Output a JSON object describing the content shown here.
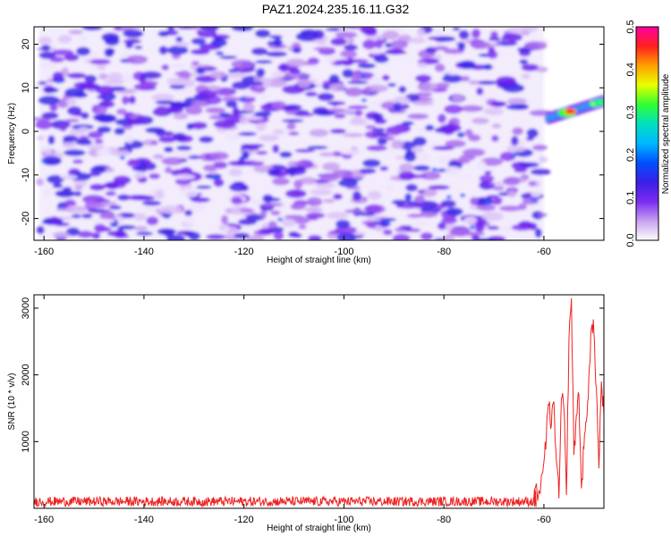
{
  "title": "PAZ1.2024.235.16.11.G32",
  "chart_data": [
    {
      "type": "heatmap",
      "xlabel": "Height of straight line (km)",
      "ylabel": "Frequency (Hz)",
      "xlim": [
        -162,
        -48
      ],
      "ylim": [
        -25,
        24
      ],
      "xticks": [
        "-160",
        "-140",
        "-120",
        "-100",
        "-80",
        "-60"
      ],
      "yticks": [
        "-20",
        "-10",
        "0",
        "10",
        "20"
      ],
      "colorbar": {
        "label": "Normalized spectral amplitude",
        "range": [
          0.0,
          0.5
        ],
        "ticks": [
          "0.0",
          "0.1",
          "0.2",
          "0.3",
          "0.4",
          "0.5"
        ],
        "colors": [
          "#ffffff",
          "#c8a0f0",
          "#7a2cf0",
          "#3a20e8",
          "#0050ff",
          "#00b8ff",
          "#00e0c0",
          "#30ff30",
          "#e8ff00",
          "#ffa000",
          "#ff2020",
          "#ff00a0"
        ]
      },
      "noise_region": {
        "x": [
          -161,
          -60
        ],
        "y": [
          -25,
          24
        ],
        "level": "0.02-0.1"
      },
      "signal_region": {
        "x": [
          -59,
          -48
        ],
        "center_freq_start": 3,
        "center_freq_end": 7,
        "peak": 0.45
      }
    },
    {
      "type": "line",
      "xlabel": "Height of straight line (km)",
      "ylabel": "SNR (10 * v/v)",
      "xlim": [
        -162,
        -48
      ],
      "ylim": [
        0,
        3200
      ],
      "xticks": [
        "-160",
        "-140",
        "-120",
        "-100",
        "-80",
        "-60"
      ],
      "yticks": [
        "1000",
        "2000",
        "3000"
      ],
      "series": [
        {
          "color": "#ee2222",
          "noise_level": 120,
          "x": [
            -62,
            -61,
            -60,
            -59.5,
            -59,
            -58.5,
            -58,
            -57.5,
            -57,
            -56.5,
            -56,
            -55.5,
            -55,
            -54.5,
            -54,
            -53.5,
            -53,
            -52.5,
            -52,
            -51.5,
            -51,
            -50.5,
            -50,
            -49.5,
            -49,
            -48.5,
            -48
          ],
          "values": [
            160,
            260,
            700,
            1100,
            1550,
            1250,
            1600,
            700,
            150,
            1650,
            1500,
            200,
            2500,
            3150,
            800,
            1400,
            1700,
            300,
            900,
            1300,
            2000,
            2700,
            2650,
            1800,
            600,
            1900,
            1400
          ]
        }
      ]
    }
  ]
}
